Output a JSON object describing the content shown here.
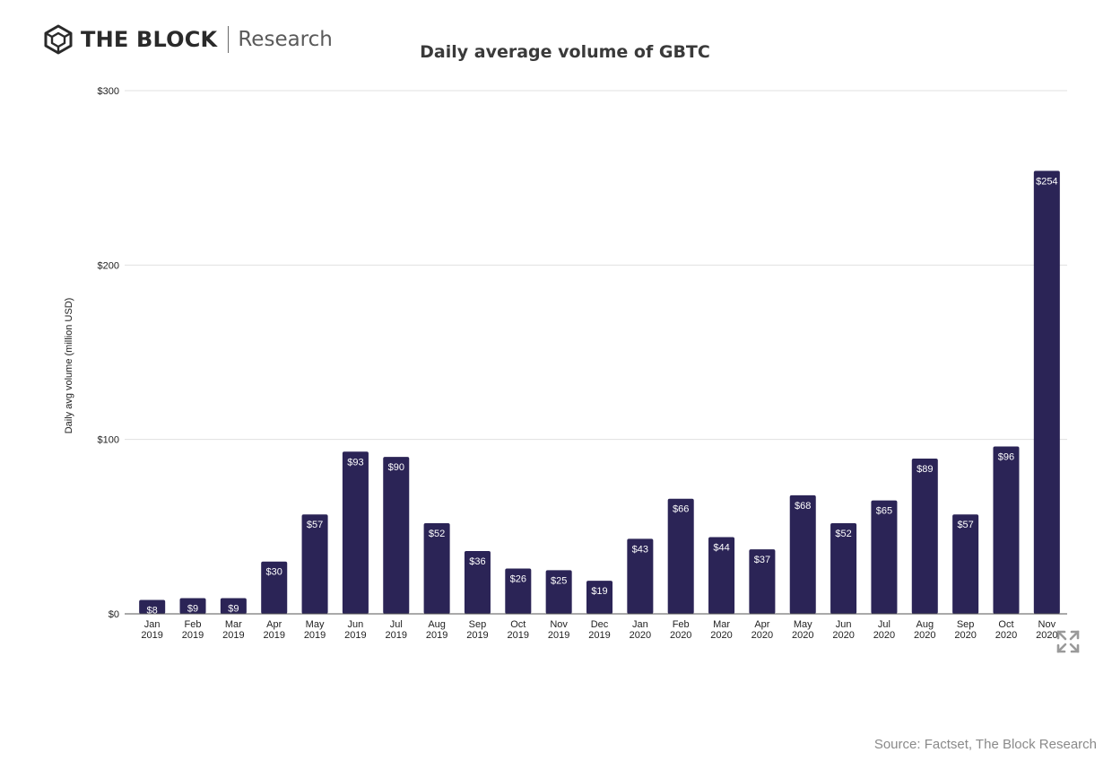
{
  "brand": {
    "name": "THE BLOCK",
    "subtitle": "Research",
    "logo_icon": "cube-logo-icon"
  },
  "source": "Source: Factset, The Block Research",
  "expand_icon": "expand-icon",
  "colors": {
    "bar": "#2b2456",
    "grid": "#e0e0e0",
    "axis": "#555555",
    "text": "#222222"
  },
  "chart_data": {
    "type": "bar",
    "title": "Daily average volume of GBTC",
    "ylabel": "Daily avg volume (million USD)",
    "xlabel": "",
    "ylim": [
      0,
      300
    ],
    "yticks": [
      0,
      100,
      200,
      300
    ],
    "ytick_labels": [
      "$0",
      "$100",
      "$200",
      "$300"
    ],
    "grid": true,
    "categories": [
      [
        "Jan",
        "2019"
      ],
      [
        "Feb",
        "2019"
      ],
      [
        "Mar",
        "2019"
      ],
      [
        "Apr",
        "2019"
      ],
      [
        "May",
        "2019"
      ],
      [
        "Jun",
        "2019"
      ],
      [
        "Jul",
        "2019"
      ],
      [
        "Aug",
        "2019"
      ],
      [
        "Sep",
        "2019"
      ],
      [
        "Oct",
        "2019"
      ],
      [
        "Nov",
        "2019"
      ],
      [
        "Dec",
        "2019"
      ],
      [
        "Jan",
        "2020"
      ],
      [
        "Feb",
        "2020"
      ],
      [
        "Mar",
        "2020"
      ],
      [
        "Apr",
        "2020"
      ],
      [
        "May",
        "2020"
      ],
      [
        "Jun",
        "2020"
      ],
      [
        "Jul",
        "2020"
      ],
      [
        "Aug",
        "2020"
      ],
      [
        "Sep",
        "2020"
      ],
      [
        "Oct",
        "2020"
      ],
      [
        "Nov",
        "2020"
      ]
    ],
    "values": [
      8,
      9,
      9,
      30,
      57,
      93,
      90,
      52,
      36,
      26,
      25,
      19,
      43,
      66,
      44,
      37,
      68,
      52,
      65,
      89,
      57,
      96,
      254
    ],
    "data_labels": [
      "$8",
      "$9",
      "$9",
      "$30",
      "$57",
      "$93",
      "$90",
      "$52",
      "$36",
      "$26",
      "$25",
      "$19",
      "$43",
      "$66",
      "$44",
      "$37",
      "$68",
      "$52",
      "$65",
      "$89",
      "$57",
      "$96",
      "$254"
    ]
  }
}
